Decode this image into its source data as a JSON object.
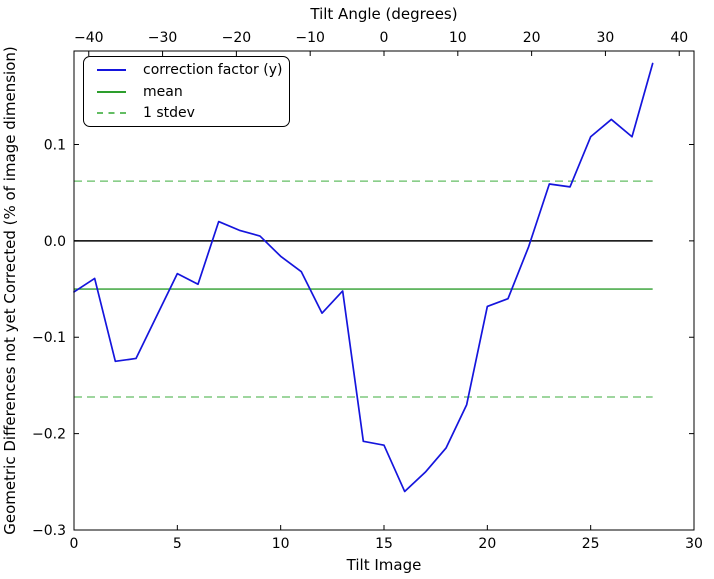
{
  "chart_data": {
    "type": "line",
    "top_axis": {
      "label": "Tilt Angle (degrees)",
      "lim": [
        -42,
        42
      ],
      "ticks": [
        {
          "v": -40,
          "label": "−40"
        },
        {
          "v": -30,
          "label": "−30"
        },
        {
          "v": -20,
          "label": "−20"
        },
        {
          "v": -10,
          "label": "−10"
        },
        {
          "v": 0,
          "label": "0"
        },
        {
          "v": 10,
          "label": "10"
        },
        {
          "v": 20,
          "label": "20"
        },
        {
          "v": 30,
          "label": "30"
        },
        {
          "v": 40,
          "label": "40"
        }
      ]
    },
    "bottom_axis": {
      "label": "Tilt Image",
      "lim": [
        0,
        30
      ],
      "ticks": [
        {
          "v": 0,
          "label": "0"
        },
        {
          "v": 5,
          "label": "5"
        },
        {
          "v": 10,
          "label": "10"
        },
        {
          "v": 15,
          "label": "15"
        },
        {
          "v": 20,
          "label": "20"
        },
        {
          "v": 25,
          "label": "25"
        },
        {
          "v": 30,
          "label": "30"
        }
      ]
    },
    "left_axis": {
      "label": "Geometric Differences not yet Corrected (% of image dimension)",
      "lim": [
        -0.3,
        0.197
      ],
      "ticks": [
        {
          "v": 0.1,
          "label": "0.1"
        },
        {
          "v": 0.0,
          "label": "0.0"
        },
        {
          "v": -0.1,
          "label": "−0.1"
        },
        {
          "v": -0.2,
          "label": "−0.2"
        },
        {
          "v": -0.3,
          "label": "−0.3"
        }
      ]
    },
    "grid": false,
    "series": {
      "correction_factor": {
        "name": "correction factor (y)",
        "color": "#1515dd",
        "x": [
          0,
          1,
          2,
          3,
          4,
          5,
          6,
          7,
          8,
          9,
          10,
          11,
          12,
          13,
          14,
          15,
          16,
          17,
          18,
          19,
          20,
          21,
          22,
          23,
          24,
          25,
          26,
          27,
          28
        ],
        "y": [
          -0.053,
          -0.039,
          -0.125,
          -0.122,
          -0.078,
          -0.034,
          -0.045,
          0.02,
          0.011,
          0.005,
          -0.016,
          -0.032,
          -0.075,
          -0.052,
          -0.208,
          -0.212,
          -0.26,
          -0.24,
          -0.215,
          -0.17,
          -0.068,
          -0.06,
          -0.006,
          0.059,
          0.056,
          0.108,
          0.126,
          0.108,
          0.184
        ]
      },
      "zero_line": {
        "name": "zero",
        "color": "#000000",
        "value": 0.0,
        "x_span": [
          0,
          28
        ],
        "dash": false,
        "width": 1.5
      },
      "mean_line": {
        "name": "mean",
        "color": "#2d9e2d",
        "value": -0.05,
        "x_span": [
          0,
          28
        ],
        "dash": false,
        "width": 1.3
      },
      "stdev_lines": {
        "name": "1 stdev",
        "color": "#63bd63",
        "values": [
          0.062,
          -0.162
        ],
        "x_span": [
          0,
          28
        ],
        "dash": true,
        "width": 1.3
      }
    },
    "stats": {
      "mean": -0.05,
      "stdev": 0.112
    },
    "legend": {
      "position": "upper left",
      "items": [
        {
          "label": "correction factor (y)",
          "color": "#1515dd",
          "dash": false
        },
        {
          "label": "mean",
          "color": "#2d9e2d",
          "dash": false
        },
        {
          "label": "1 stdev",
          "color": "#63bd63",
          "dash": true
        }
      ]
    }
  }
}
